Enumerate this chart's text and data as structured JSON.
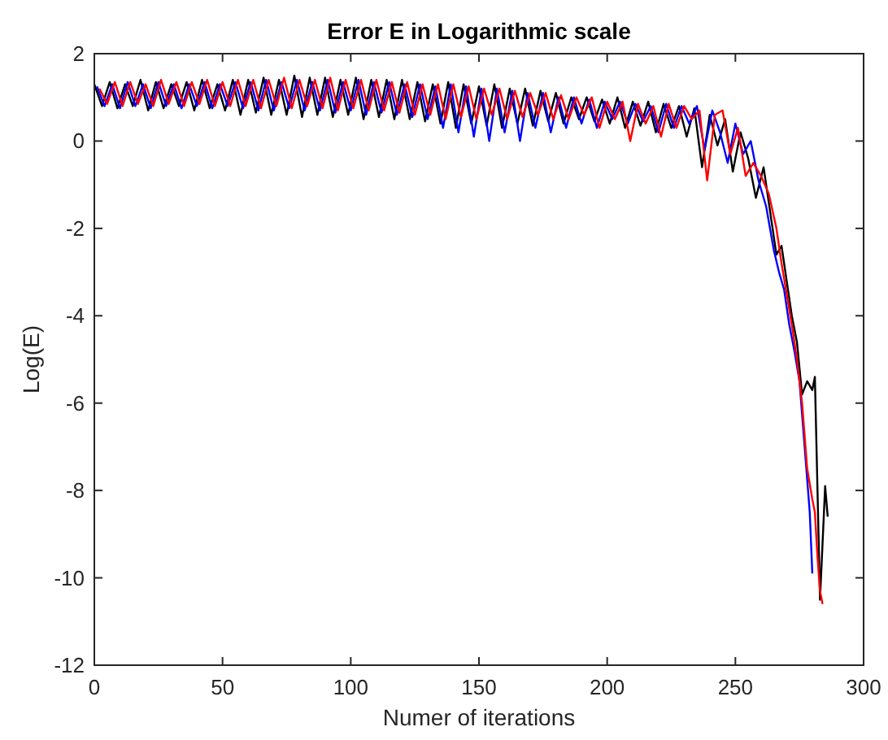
{
  "chart_data": {
    "type": "line",
    "title": "Error E in Logarithmic scale",
    "xlabel": "Numer of iterations",
    "ylabel": "Log(E)",
    "xlim": [
      0,
      300
    ],
    "ylim": [
      -12,
      2
    ],
    "xticks": [
      0,
      50,
      100,
      150,
      200,
      250,
      300
    ],
    "yticks": [
      -12,
      -10,
      -8,
      -6,
      -4,
      -2,
      0,
      2
    ],
    "grid": false,
    "series": [
      {
        "color": "#000000",
        "x": [
          0,
          3,
          6,
          9,
          12,
          15,
          18,
          21,
          24,
          27,
          30,
          33,
          36,
          39,
          42,
          45,
          48,
          51,
          54,
          57,
          60,
          63,
          66,
          69,
          72,
          75,
          78,
          81,
          84,
          87,
          90,
          93,
          96,
          99,
          102,
          105,
          108,
          111,
          114,
          117,
          120,
          123,
          126,
          129,
          132,
          135,
          138,
          141,
          144,
          147,
          150,
          153,
          156,
          159,
          162,
          165,
          168,
          171,
          174,
          177,
          180,
          183,
          186,
          189,
          192,
          195,
          198,
          201,
          204,
          207,
          210,
          213,
          216,
          219,
          222,
          225,
          228,
          231,
          234,
          237,
          240,
          243,
          246,
          249,
          252,
          255,
          258,
          261,
          264,
          266,
          268,
          270,
          272,
          274,
          276,
          278,
          280,
          281,
          283,
          285,
          286
        ],
        "values": [
          1.3,
          0.8,
          1.35,
          0.75,
          1.3,
          0.8,
          1.4,
          0.7,
          1.35,
          0.75,
          1.3,
          0.8,
          1.35,
          0.7,
          1.4,
          0.75,
          1.3,
          0.7,
          1.4,
          0.6,
          1.4,
          0.65,
          1.45,
          0.6,
          1.4,
          0.6,
          1.5,
          0.55,
          1.45,
          0.6,
          1.45,
          0.55,
          1.4,
          0.6,
          1.45,
          0.5,
          1.4,
          0.55,
          1.4,
          0.5,
          1.4,
          0.5,
          1.35,
          0.45,
          1.3,
          0.4,
          1.35,
          0.3,
          1.3,
          0.4,
          1.25,
          0.35,
          1.3,
          0.3,
          1.2,
          0.4,
          1.2,
          0.35,
          1.15,
          0.45,
          1.1,
          0.4,
          1.0,
          0.5,
          1.0,
          0.45,
          0.95,
          0.4,
          1.0,
          0.3,
          0.9,
          0.35,
          0.9,
          0.2,
          0.85,
          0.3,
          0.8,
          0.1,
          0.75,
          -0.6,
          0.6,
          -0.1,
          0.5,
          -0.7,
          0.2,
          -0.4,
          -1.3,
          -0.6,
          -1.8,
          -2.6,
          -2.4,
          -3.2,
          -4.0,
          -4.6,
          -5.8,
          -5.5,
          -5.7,
          -5.4,
          -10.5,
          -7.9,
          -8.6
        ]
      },
      {
        "color": "#0000ff",
        "x": [
          1,
          4,
          7,
          10,
          13,
          16,
          19,
          22,
          25,
          28,
          31,
          34,
          37,
          40,
          43,
          46,
          49,
          52,
          55,
          58,
          61,
          64,
          67,
          70,
          73,
          76,
          79,
          82,
          85,
          88,
          91,
          94,
          97,
          100,
          103,
          106,
          109,
          112,
          115,
          118,
          121,
          124,
          127,
          130,
          133,
          136,
          139,
          142,
          145,
          148,
          151,
          154,
          157,
          160,
          163,
          166,
          169,
          172,
          175,
          178,
          181,
          184,
          187,
          190,
          193,
          196,
          199,
          202,
          205,
          208,
          211,
          214,
          217,
          220,
          223,
          226,
          229,
          232,
          235,
          238,
          241,
          244,
          247,
          250,
          253,
          256,
          259,
          262,
          265,
          267,
          269,
          271,
          273,
          275,
          277,
          279,
          280
        ],
        "values": [
          1.25,
          0.8,
          1.3,
          0.75,
          1.35,
          0.8,
          1.3,
          0.75,
          1.35,
          0.8,
          1.3,
          0.75,
          1.3,
          0.8,
          1.35,
          0.75,
          1.3,
          0.8,
          1.35,
          0.75,
          1.35,
          0.7,
          1.4,
          0.7,
          1.35,
          0.75,
          1.4,
          0.7,
          1.35,
          0.7,
          1.4,
          0.65,
          1.35,
          0.7,
          1.4,
          0.6,
          1.35,
          0.65,
          1.35,
          0.6,
          1.3,
          0.55,
          1.3,
          0.5,
          1.25,
          0.3,
          1.3,
          0.2,
          1.25,
          0.1,
          1.2,
          0.0,
          1.2,
          0.2,
          1.15,
          0.0,
          1.1,
          0.3,
          1.1,
          0.2,
          1.0,
          0.3,
          1.0,
          0.4,
          0.95,
          0.3,
          0.9,
          0.5,
          0.9,
          0.4,
          0.85,
          0.45,
          0.8,
          0.2,
          0.85,
          0.3,
          0.8,
          0.4,
          0.8,
          -0.2,
          0.7,
          0.2,
          -0.5,
          0.4,
          -0.3,
          0.0,
          -0.9,
          -1.5,
          -2.5,
          -3.0,
          -3.4,
          -4.2,
          -4.8,
          -5.5,
          -7.0,
          -8.5,
          -9.9
        ]
      },
      {
        "color": "#ff0000",
        "x": [
          2,
          5,
          8,
          11,
          14,
          17,
          20,
          23,
          26,
          29,
          32,
          35,
          38,
          41,
          44,
          47,
          50,
          53,
          56,
          59,
          62,
          65,
          68,
          71,
          74,
          77,
          80,
          83,
          86,
          89,
          92,
          95,
          98,
          101,
          104,
          107,
          110,
          113,
          116,
          119,
          122,
          125,
          128,
          131,
          134,
          137,
          140,
          143,
          146,
          149,
          152,
          155,
          158,
          161,
          164,
          167,
          170,
          173,
          176,
          179,
          182,
          185,
          188,
          191,
          194,
          197,
          200,
          203,
          206,
          209,
          212,
          215,
          218,
          221,
          224,
          227,
          230,
          233,
          236,
          239,
          242,
          245,
          248,
          251,
          254,
          257,
          260,
          263,
          266,
          268,
          270,
          272,
          274,
          276,
          278,
          280,
          281,
          282,
          283,
          284
        ],
        "values": [
          1.2,
          0.85,
          1.35,
          0.8,
          1.35,
          0.85,
          1.3,
          0.8,
          1.4,
          0.85,
          1.35,
          0.8,
          1.35,
          0.85,
          1.4,
          0.8,
          1.35,
          0.8,
          1.4,
          0.8,
          1.4,
          0.75,
          1.4,
          0.8,
          1.45,
          0.75,
          1.4,
          0.8,
          1.4,
          0.75,
          1.45,
          0.7,
          1.4,
          0.75,
          1.4,
          0.7,
          1.4,
          0.7,
          1.35,
          0.65,
          1.35,
          0.6,
          1.3,
          0.6,
          1.3,
          0.5,
          1.3,
          0.55,
          1.25,
          0.5,
          1.2,
          0.6,
          1.2,
          0.5,
          1.15,
          0.55,
          1.1,
          0.6,
          1.1,
          0.5,
          1.05,
          0.5,
          1.0,
          0.6,
          1.0,
          0.3,
          0.9,
          0.5,
          0.9,
          0.0,
          0.85,
          0.4,
          0.8,
          0.1,
          0.85,
          0.3,
          0.8,
          0.5,
          0.7,
          -0.9,
          0.6,
          0.7,
          -0.3,
          0.3,
          -0.8,
          -0.5,
          -0.8,
          -1.2,
          -2.0,
          -2.8,
          -3.5,
          -4.2,
          -5.0,
          -6.0,
          -7.5,
          -8.2,
          -8.5,
          -9.5,
          -10.3,
          -10.6
        ]
      }
    ]
  }
}
